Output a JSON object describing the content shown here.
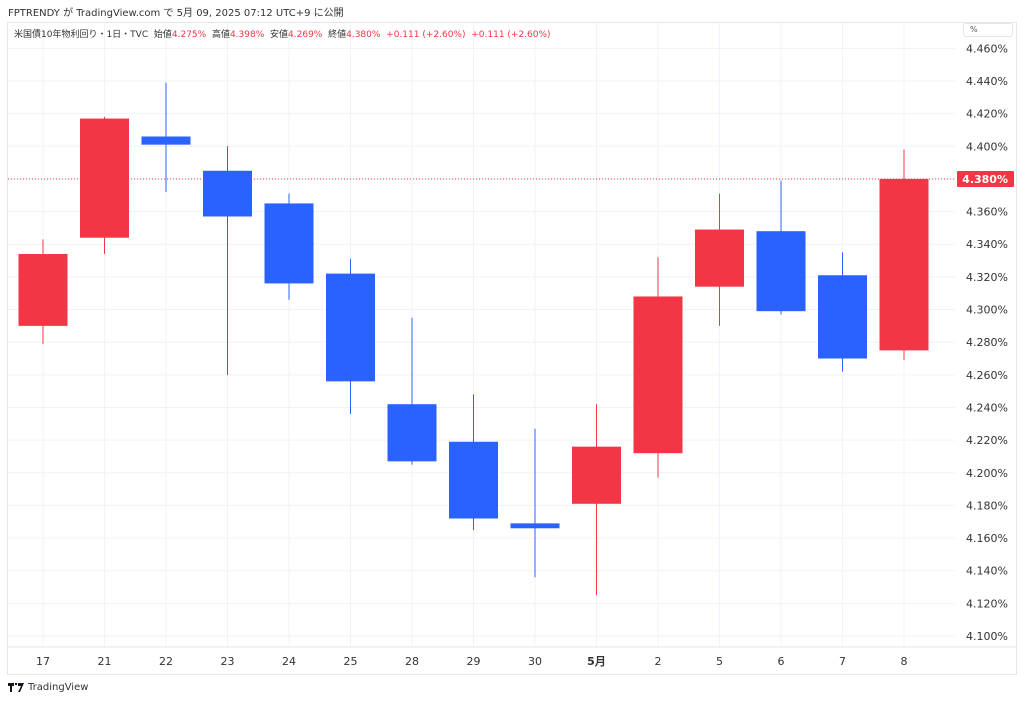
{
  "publisher_line": "FPTRENDY が TradingView.com で 5月 09, 2025 07:12 UTC+9 に公開",
  "legend": {
    "symbol": "米国債10年物利回り・1日・TVC",
    "open_label": "始値",
    "open": "4.275%",
    "high_label": "高値",
    "high": "4.398%",
    "low_label": "安値",
    "low": "4.269%",
    "close_label": "終値",
    "close": "4.380%",
    "change1": "+0.111 (+2.60%)",
    "change2": "+0.111 (+2.60%)"
  },
  "unit_label": "%",
  "footer_brand": "TradingView",
  "colors": {
    "up": "#f23645",
    "down": "#2962ff",
    "grid": "#f0f3fa"
  },
  "chart_data": {
    "type": "candlestick",
    "title": "米国債10年物利回り・1日・TVC",
    "categories": [
      "17",
      "21",
      "22",
      "23",
      "24",
      "25",
      "28",
      "29",
      "30",
      "5月",
      "2",
      "5",
      "6",
      "7",
      "8"
    ],
    "bold_categories": [
      "5月"
    ],
    "ohlc": [
      [
        4.29,
        4.343,
        4.279,
        4.334
      ],
      [
        4.344,
        4.418,
        4.334,
        4.417
      ],
      [
        4.406,
        4.439,
        4.372,
        4.401
      ],
      [
        4.385,
        4.4,
        4.26,
        4.357
      ],
      [
        4.365,
        4.371,
        4.306,
        4.316
      ],
      [
        4.322,
        4.331,
        4.236,
        4.256
      ],
      [
        4.242,
        4.295,
        4.205,
        4.207
      ],
      [
        4.219,
        4.248,
        4.165,
        4.172
      ],
      [
        4.169,
        4.227,
        4.136,
        4.166
      ],
      [
        4.181,
        4.242,
        4.125,
        4.216
      ],
      [
        4.212,
        4.332,
        4.197,
        4.308
      ],
      [
        4.314,
        4.371,
        4.29,
        4.349
      ],
      [
        4.348,
        4.379,
        4.297,
        4.299
      ],
      [
        4.321,
        4.335,
        4.262,
        4.27
      ],
      [
        4.275,
        4.398,
        4.269,
        4.38
      ]
    ],
    "y_ticks": [
      "4.100%",
      "4.120%",
      "4.140%",
      "4.160%",
      "4.180%",
      "4.200%",
      "4.220%",
      "4.240%",
      "4.260%",
      "4.280%",
      "4.300%",
      "4.320%",
      "4.340%",
      "4.360%",
      "4.380%",
      "4.400%",
      "4.420%",
      "4.440%",
      "4.460%"
    ],
    "ylim": [
      4.1,
      4.46
    ],
    "last_price": 4.38,
    "last_price_label": "4.380%",
    "grid": true
  }
}
